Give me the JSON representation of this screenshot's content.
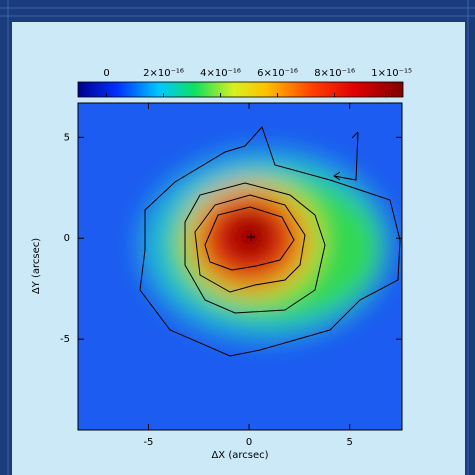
{
  "chart_data": {
    "type": "heatmap",
    "xlabel": "ΔX (arcsec)",
    "ylabel": "ΔY (arcsec)",
    "xlim": [
      -8.5,
      7.6
    ],
    "xticks": [
      -5,
      0,
      5
    ],
    "ylim": [
      -9.5,
      6.7
    ],
    "yticks": [
      -5,
      0,
      5
    ],
    "colorbar": {
      "lim": [
        -1e-16,
        1.04e-15
      ],
      "ticks": [
        0,
        {
          "value": 2e-16,
          "label": "2×10⁻¹⁶"
        },
        {
          "value": 4e-16,
          "label": "4×10⁻¹⁶"
        },
        {
          "value": 6e-16,
          "label": "6×10⁻¹⁶"
        },
        {
          "value": 8e-16,
          "label": "8×10⁻¹⁶"
        },
        {
          "value": 1e-15,
          "label": "1×10⁻¹⁵"
        }
      ]
    }
  }
}
